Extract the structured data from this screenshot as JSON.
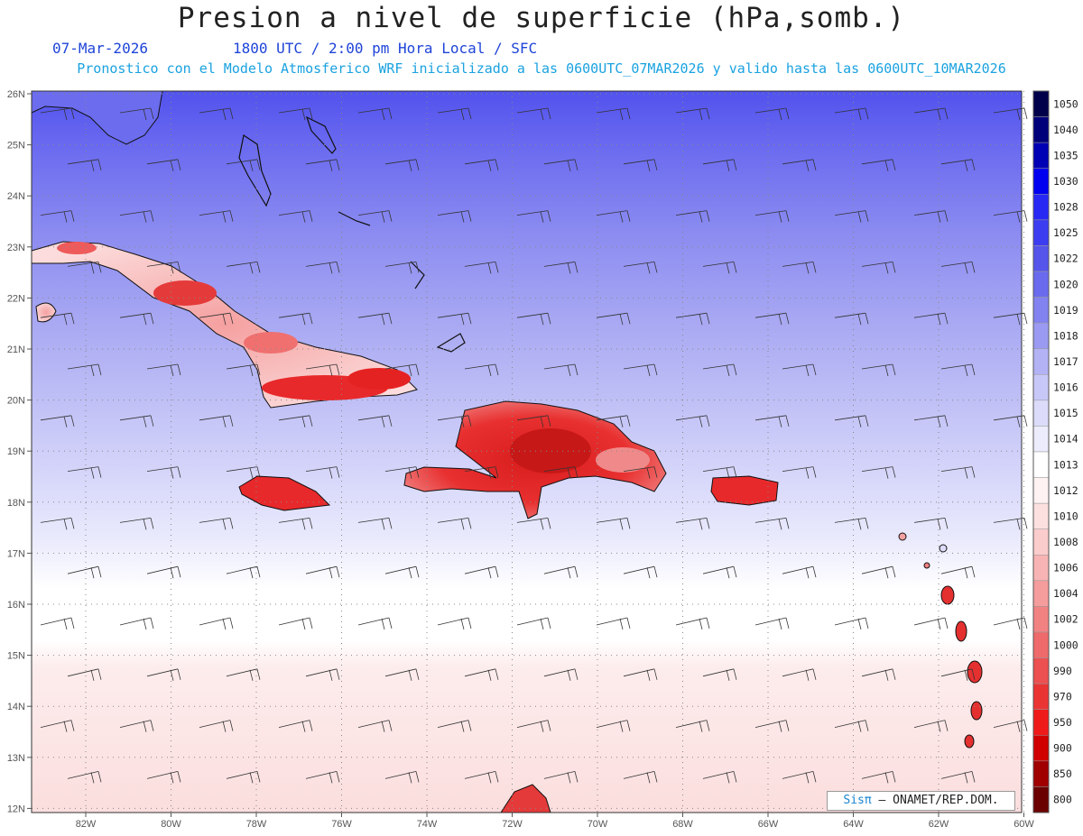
{
  "header": {
    "title": "Presion a nivel de superficie (hPa,somb.)",
    "date": "07-Mar-2026",
    "time": "1800 UTC / 2:00 pm Hora Local / SFC",
    "forecast_note": "Pronostico con el Modelo Atmosferico WRF inicializado a las 0600UTC_07MAR2026 y valido hasta las  0600UTC_10MAR2026"
  },
  "axes": {
    "lat_labels": [
      "26N",
      "25N",
      "24N",
      "23N",
      "22N",
      "21N",
      "20N",
      "19N",
      "18N",
      "17N",
      "16N",
      "15N",
      "14N",
      "13N",
      "12N"
    ],
    "lon_labels": [
      "82W",
      "80W",
      "78W",
      "76W",
      "74W",
      "72W",
      "70W",
      "68W",
      "66W",
      "64W",
      "62W",
      "60W"
    ]
  },
  "legend": {
    "levels": [
      "1050",
      "1040",
      "1035",
      "1030",
      "1028",
      "1025",
      "1022",
      "1020",
      "1019",
      "1018",
      "1017",
      "1016",
      "1015",
      "1014",
      "1013",
      "1012",
      "1010",
      "1008",
      "1006",
      "1004",
      "1002",
      "1000",
      "990",
      "970",
      "950",
      "900",
      "850",
      "800"
    ],
    "colors": [
      "#00004a",
      "#00007a",
      "#0000b4",
      "#0000f0",
      "#2828f5",
      "#3c3cf0",
      "#5555ec",
      "#6a6aee",
      "#8282f0",
      "#9a9af2",
      "#b2b2f5",
      "#c8c8f8",
      "#dcdcfa",
      "#ececfc",
      "#ffffff",
      "#fff2f2",
      "#fce0e0",
      "#fbcccc",
      "#f8b4b4",
      "#f59c9c",
      "#f28282",
      "#ef6a6a",
      "#ec5050",
      "#ea3434",
      "#ef1a1a",
      "#d00000",
      "#a00000",
      "#6a0000"
    ]
  },
  "credit": {
    "logo": "Sisπ",
    "text": "– ONAMET/REP.DOM."
  },
  "colors": {
    "land_high": "#e8262a",
    "land_mid": "#f7a2a2",
    "ocean_low": "#fbe2e2"
  }
}
